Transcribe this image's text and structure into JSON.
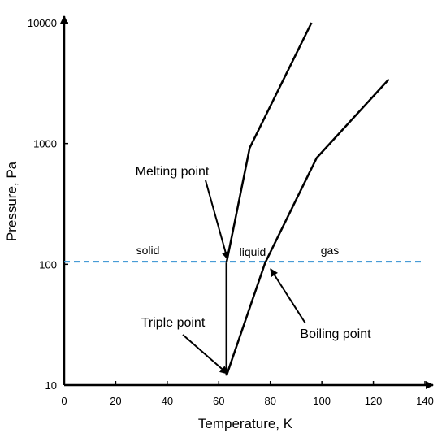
{
  "axes": {
    "x_title": "Temperature, K",
    "y_title": "Pressure, Pa",
    "x_ticks": [
      "0",
      "20",
      "40",
      "60",
      "80",
      "100",
      "120",
      "140"
    ],
    "y_ticks": [
      "10",
      "100",
      "1000",
      "10000"
    ]
  },
  "regions": {
    "solid": "solid",
    "liquid": "liquid",
    "gas": "gas"
  },
  "callouts": {
    "melting": "Melting point",
    "triple": "Triple point",
    "boiling": "Boiling point"
  },
  "colors": {
    "reference_line": "#2f8fd1",
    "curves": "#000000"
  },
  "chart_data": {
    "type": "line",
    "x_range": [
      0,
      140
    ],
    "y_range": [
      10,
      10000
    ],
    "y_scale": "log",
    "series": [
      {
        "points": [
          [
            63,
            12
          ],
          [
            63,
            103
          ]
        ]
      },
      {
        "points": [
          [
            63,
            103
          ],
          [
            72,
            920
          ],
          [
            96,
            10000
          ]
        ]
      },
      {
        "points": [
          [
            63,
            12
          ],
          [
            78,
            103
          ],
          [
            98,
            760
          ],
          [
            126,
            3400
          ]
        ]
      }
    ],
    "reference_line": {
      "y": 105,
      "style": "dashed"
    },
    "annotations": [
      {
        "label": "Melting point",
        "x": 63,
        "y": 103
      },
      {
        "label": "Triple point",
        "x": 63,
        "y": 12
      },
      {
        "label": "Boiling point",
        "x": 78,
        "y": 103
      }
    ]
  }
}
